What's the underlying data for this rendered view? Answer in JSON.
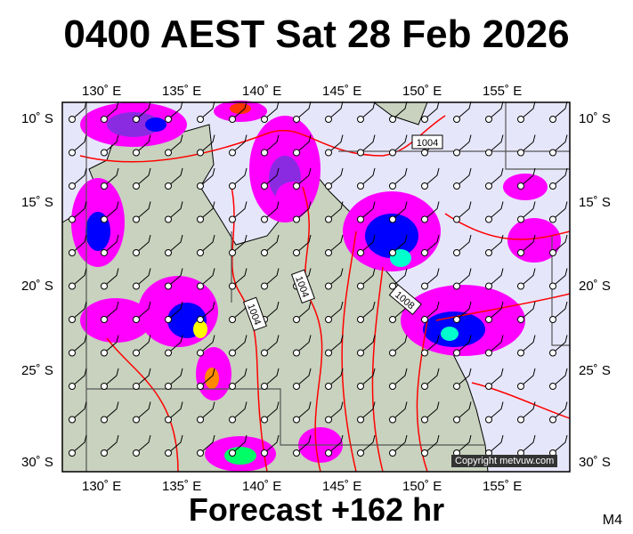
{
  "header": {
    "title": "0400 AEST Sat 28 Feb 2026"
  },
  "footer": {
    "forecast": "Forecast +162 hr",
    "model": "M4"
  },
  "axes": {
    "lon_labels": [
      "130˚ E",
      "135˚ E",
      "140˚ E",
      "145˚ E",
      "150˚ E",
      "155˚ E"
    ],
    "lat_labels": [
      "10˚ S",
      "15˚ S",
      "20˚ S",
      "25˚ S",
      "30˚ S"
    ]
  },
  "isobar_labels": [
    "1004",
    "1004",
    "1004",
    "1008"
  ],
  "copyright": "Copyright metvuw.com",
  "colors": {
    "ocean": "#e6e6fa",
    "land": "#c8d2be",
    "isobar": "#ff0000",
    "rain_light": "#ff00ff",
    "rain_mid": "#8a2be2",
    "rain_heavy": "#0000ff"
  }
}
